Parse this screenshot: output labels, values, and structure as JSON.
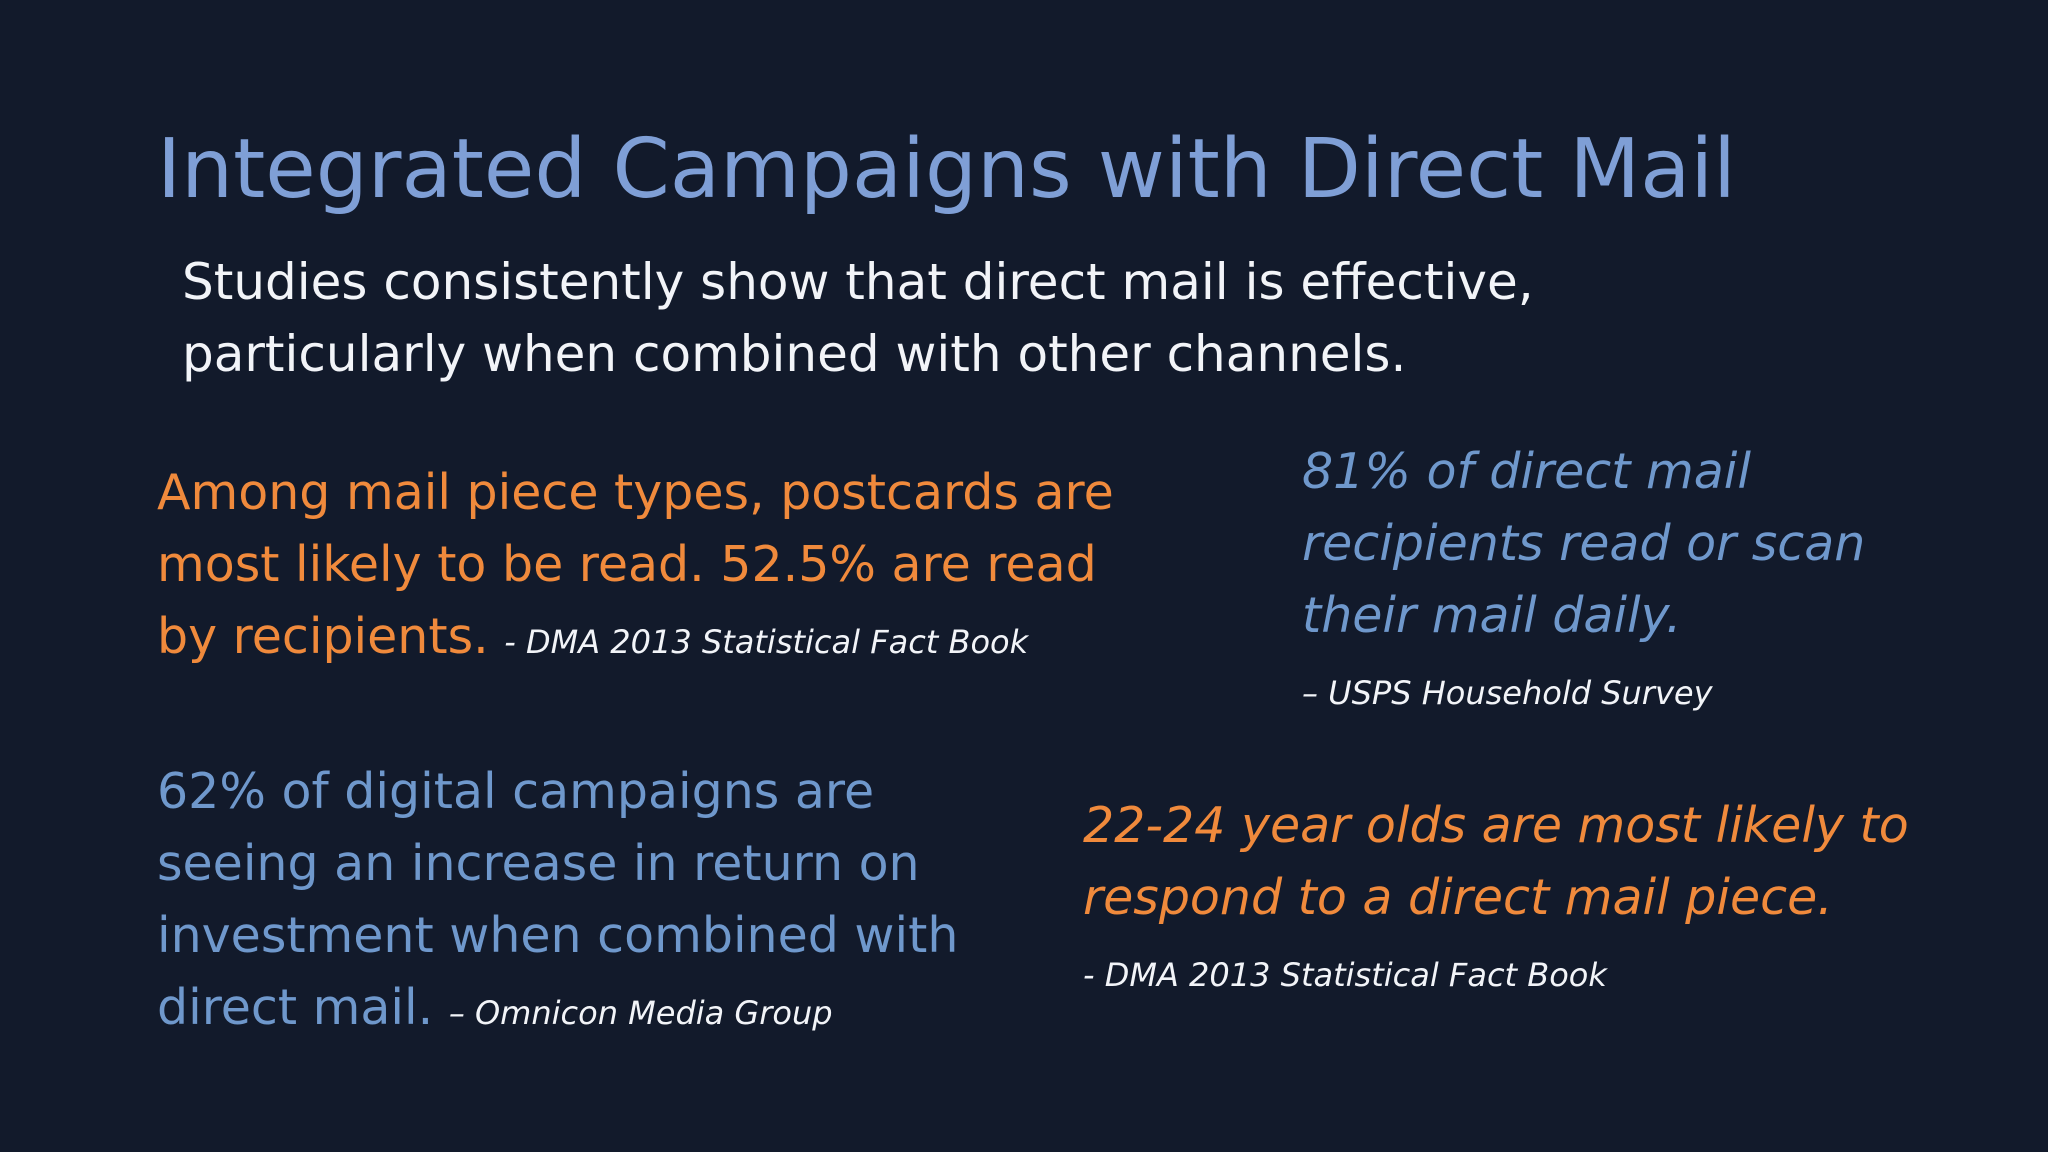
{
  "slide": {
    "title": "Integrated Campaigns with Direct Mail",
    "subtitle": "Studies consistently show that direct mail is effective, particularly when combined with other channels.",
    "quotes": [
      {
        "text": "Among mail piece types, postcards are most likely to be read. 52.5% are read by recipients.",
        "source": "- DMA 2013 Statistical Fact Book"
      },
      {
        "text": "81% of direct mail recipients read or scan their mail daily.",
        "source": "– USPS Household Survey"
      },
      {
        "text": "62% of digital campaigns are seeing an increase in return on investment when combined with direct mail.",
        "source": "– Omnicon Media Group"
      },
      {
        "text": "22-24 year olds are most likely to respond to a direct mail piece.",
        "source": "- DMA 2013 Statistical Fact Book"
      }
    ]
  },
  "colors": {
    "background": "#121a2b",
    "title": "#7f9fd6",
    "orange": "#f08a3c",
    "blue": "#6f98cc",
    "white": "#f2f4f8"
  }
}
